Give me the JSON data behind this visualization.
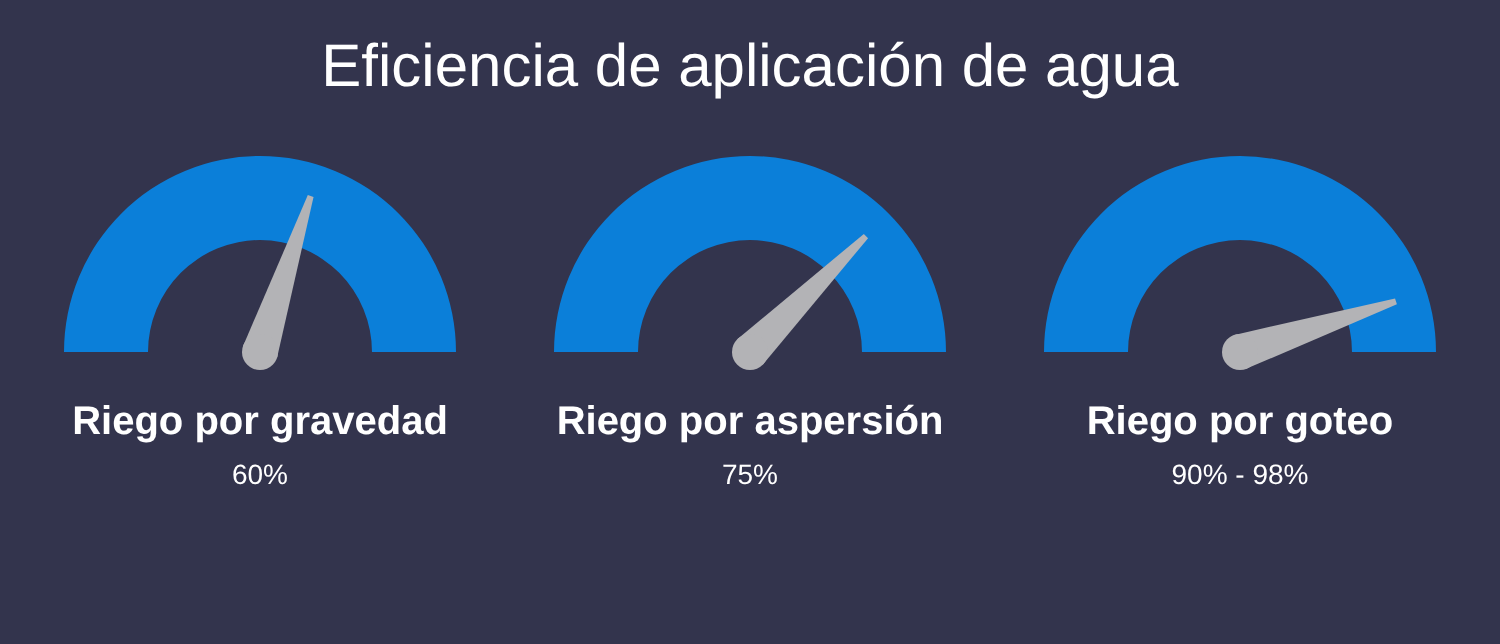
{
  "chart_data": {
    "type": "other",
    "title": "Eficiencia de aplicación de agua",
    "categories": [
      "Riego por gravedad",
      "Riego por aspersión",
      "Riego por goteo"
    ],
    "values": [
      60,
      75,
      90
    ],
    "value_labels": [
      "60%",
      "75%",
      "90% - 98%"
    ],
    "color": "#0b7fd9"
  }
}
